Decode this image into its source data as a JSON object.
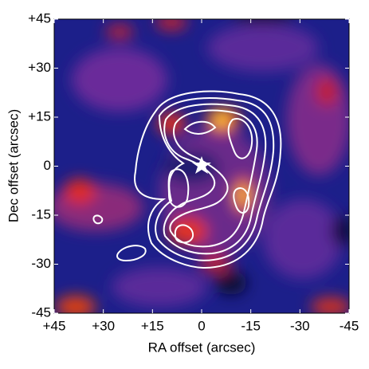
{
  "chart_data": {
    "type": "image",
    "xlabel": "RA offset (arcsec)",
    "ylabel": "Dec offset (arcsec)",
    "xlim": [
      45,
      -45
    ],
    "ylim": [
      -45,
      45
    ],
    "xticks": [
      {
        "value": 45,
        "label": "+45"
      },
      {
        "value": 30,
        "label": "+30"
      },
      {
        "value": 15,
        "label": "+15"
      },
      0,
      -15,
      -30,
      -45
    ],
    "yticks": [
      -45,
      -30,
      -15,
      0,
      {
        "value": 15,
        "label": "+15"
      },
      {
        "value": 30,
        "label": "+30"
      },
      {
        "value": 45,
        "label": "+45"
      }
    ]
  }
}
